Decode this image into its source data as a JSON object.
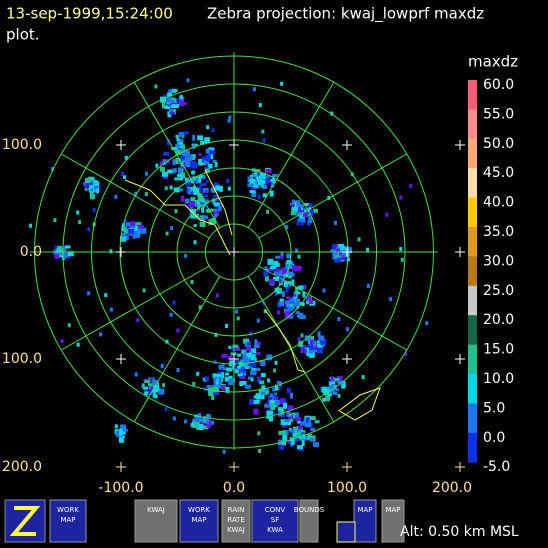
{
  "header": {
    "timestamp": "13-sep-1999,15:24:00",
    "title": "Zebra projection: kwaj_lowprf maxdz",
    "title_cont": "plot."
  },
  "colorbar": {
    "field": "maxdz",
    "labels": [
      "60.0",
      "55.0",
      "50.0",
      "45.0",
      "40.0",
      "35.0",
      "30.0",
      "25.0",
      "20.0",
      "15.0",
      "10.0",
      "5.0",
      "0.0",
      "-5.0"
    ],
    "colors": [
      "#ff5c78",
      "#ff8c8c",
      "#ffa870",
      "#ffdca8",
      "#ffc800",
      "#e09a20",
      "#b87a18",
      "#c8c8c8",
      "#146446",
      "#20c090",
      "#00d8e8",
      "#1c78ff",
      "#1030f0",
      "#6a10ff"
    ]
  },
  "axes": {
    "y_labels": [
      "100.0",
      "0.0",
      "100.0",
      "200.0"
    ],
    "x_labels": [
      "-100.0",
      "0.0",
      "100.0",
      "200.0"
    ]
  },
  "status": {
    "altitude": "Alt: 0.50 km MSL"
  },
  "toolbar": {
    "buttons": [
      {
        "lines": [
          "WORK",
          "MAP"
        ]
      },
      {
        "lines": [
          "KWAJ"
        ]
      },
      {
        "lines": [
          "WORK",
          "MAP"
        ]
      },
      {
        "lines": [
          "RAIN",
          "RATE",
          "KWAJ"
        ]
      },
      {
        "lines": [
          "CONV",
          "SF",
          "KWA"
        ]
      },
      {
        "lines": [
          "BOUNDS"
        ]
      },
      {
        "lines": [
          "MAP"
        ]
      },
      {
        "lines": [
          "MAP"
        ]
      }
    ]
  }
}
